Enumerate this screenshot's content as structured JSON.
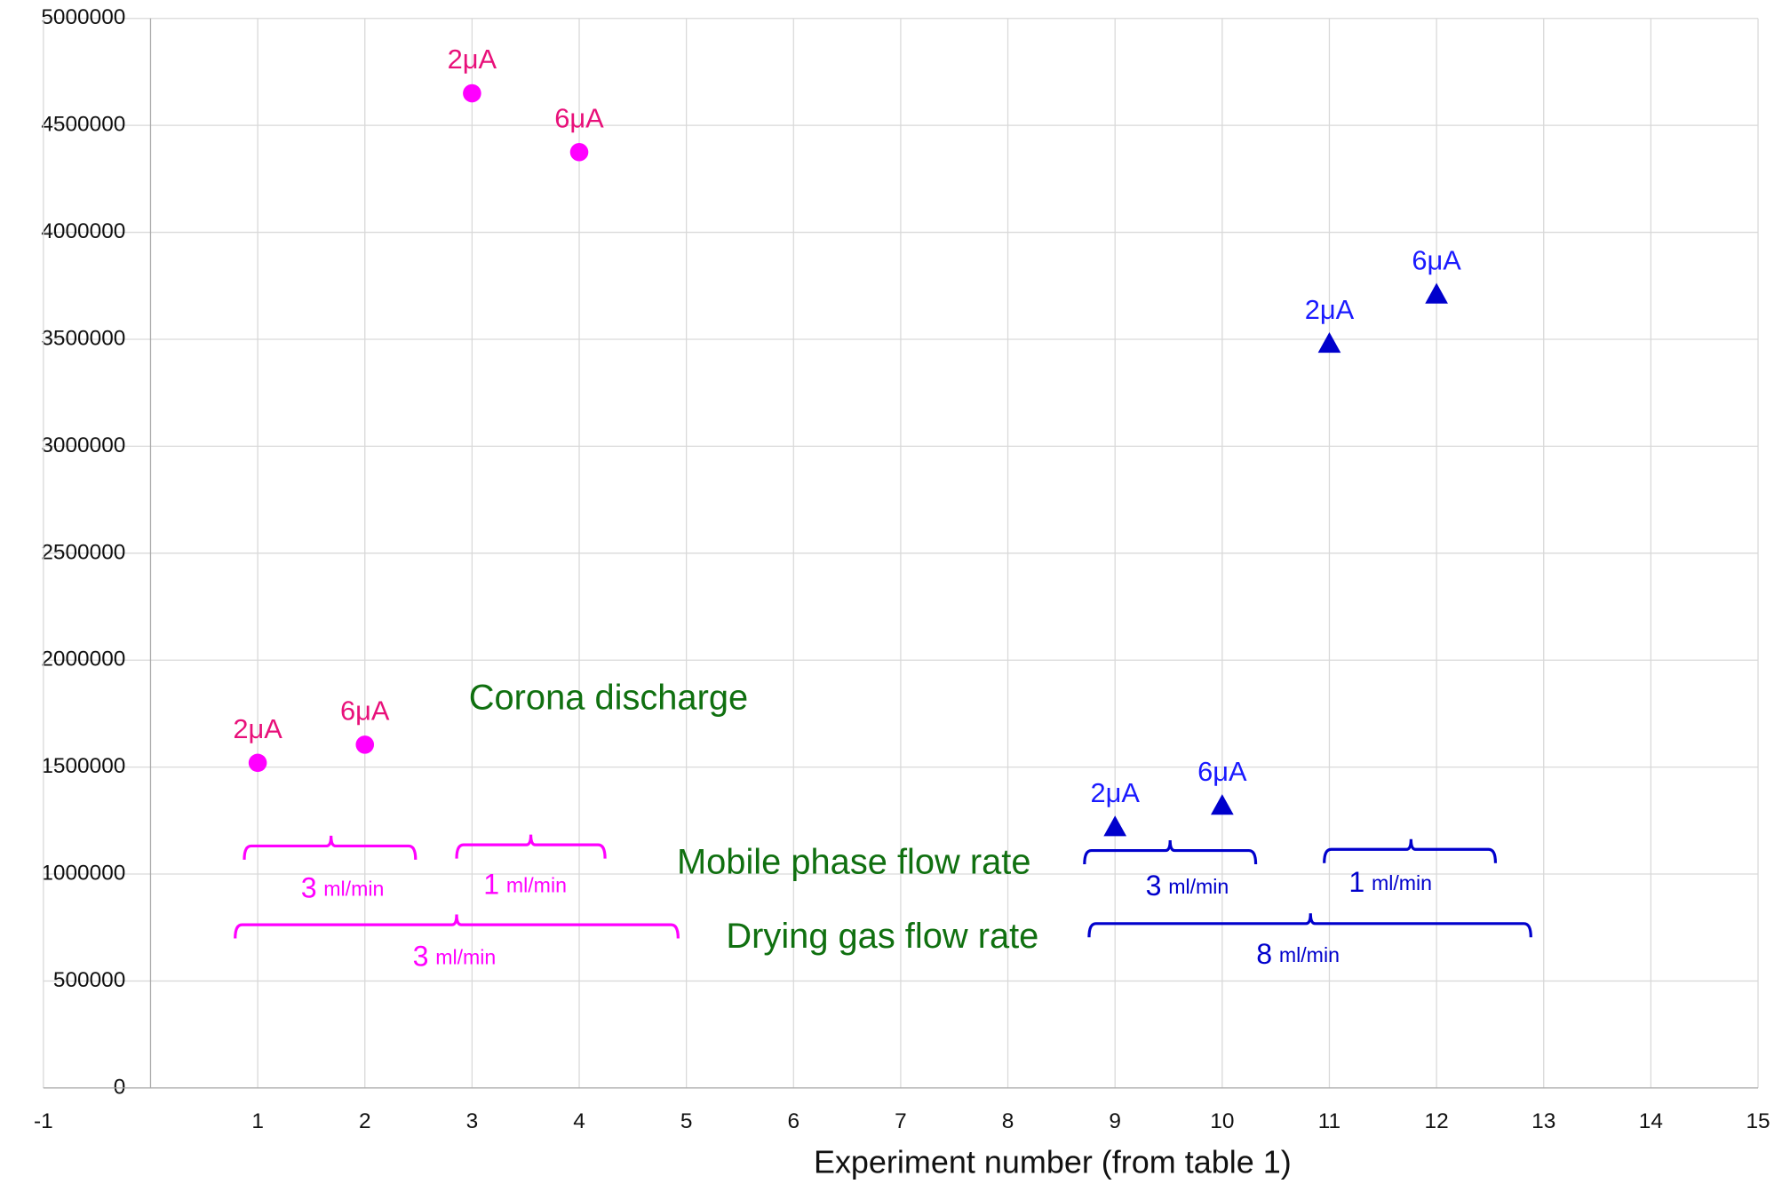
{
  "chart_data": {
    "type": "scatter",
    "x_label": "Experiment number (from table 1)",
    "xlim": [
      -1,
      15
    ],
    "xticks": [
      -1,
      1,
      2,
      3,
      4,
      5,
      6,
      7,
      8,
      9,
      10,
      11,
      12,
      13,
      14,
      15
    ],
    "ylim": [
      0,
      5000000
    ],
    "yticks": [
      0,
      500000,
      1000000,
      1500000,
      2000000,
      2500000,
      3000000,
      3500000,
      4000000,
      4500000,
      5000000
    ],
    "grid": true,
    "series": [
      {
        "marker": "circle",
        "color": "#ff00ff",
        "label_color": "#e8107a",
        "x": [
          1,
          2,
          3,
          4
        ],
        "values": [
          1520000,
          1605000,
          4650000,
          4375000
        ],
        "labels": [
          "2μA",
          "6μA",
          "2μA",
          "6μA"
        ]
      },
      {
        "marker": "triangle",
        "color": "#0000cc",
        "label_color": "#1a1aff",
        "x": [
          9,
          10,
          11,
          12
        ],
        "values": [
          1220000,
          1320000,
          3480000,
          3710000
        ],
        "labels": [
          "2μA",
          "6μA",
          "2μA",
          "6μA"
        ]
      }
    ],
    "annotations": [
      "Corona discharge",
      "Mobile phase flow rate",
      "Drying gas flow rate"
    ],
    "brace_labels": [
      {
        "number": "3",
        "unit": "ml/min"
      },
      {
        "number": "1",
        "unit": "ml/min"
      },
      {
        "number": "3",
        "unit": "ml/min"
      },
      {
        "number": "3",
        "unit": "ml/min"
      },
      {
        "number": "1",
        "unit": "ml/min"
      },
      {
        "number": "8",
        "unit": "ml/min"
      }
    ]
  }
}
